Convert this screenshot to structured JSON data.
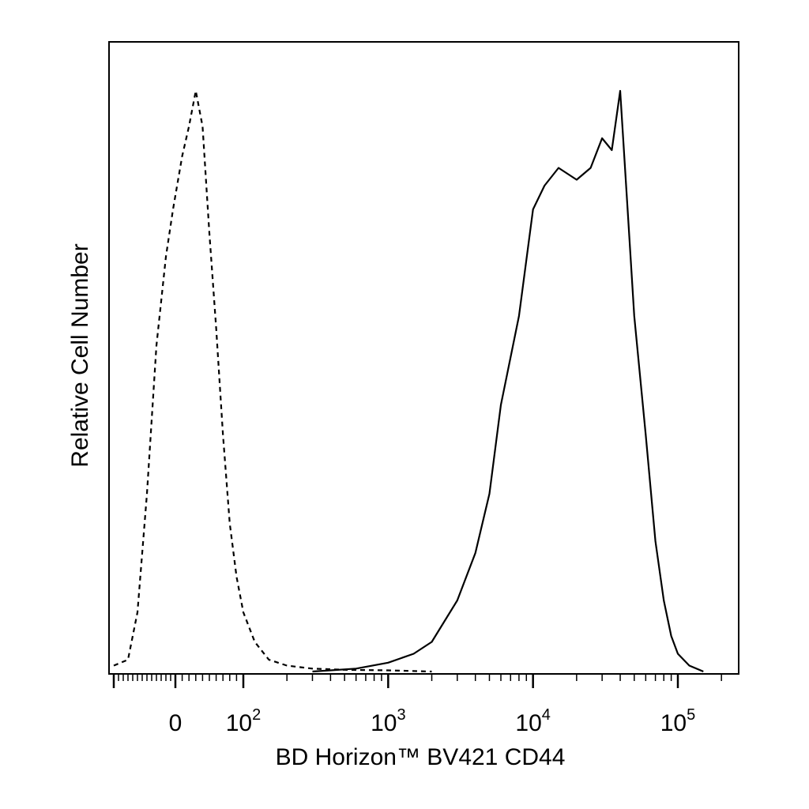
{
  "chart_data": {
    "type": "line",
    "title": "",
    "xlabel": "BD Horizon™ BV421 CD44",
    "ylabel": "Relative Cell Number",
    "x_scale": "biexponential",
    "xlim": [
      -130,
      250000
    ],
    "ylim": [
      0,
      100
    ],
    "y_ticks_labeled": false,
    "grid": false,
    "legend": "none",
    "x_tick_labels": [
      {
        "value": 0,
        "base": "0",
        "exp": ""
      },
      {
        "value": 100,
        "base": "10",
        "exp": "2"
      },
      {
        "value": 1000,
        "base": "10",
        "exp": "3"
      },
      {
        "value": 10000,
        "base": "10",
        "exp": "4"
      },
      {
        "value": 100000,
        "base": "10",
        "exp": "5"
      }
    ],
    "series": [
      {
        "style": "dashed",
        "color": "#000000",
        "x": [
          -130,
          -100,
          -80,
          -60,
          -40,
          -20,
          -5,
          10,
          20,
          30,
          40,
          50,
          60,
          70,
          80,
          90,
          100,
          120,
          150,
          200,
          300,
          500,
          1000,
          2000
        ],
        "y": [
          1,
          2,
          10,
          30,
          55,
          70,
          78,
          87,
          92,
          98,
          92,
          74,
          58,
          40,
          25,
          16,
          10,
          5,
          2,
          1,
          0.5,
          0.3,
          0.2,
          0
        ]
      },
      {
        "style": "solid",
        "color": "#000000",
        "x": [
          300,
          600,
          1000,
          1500,
          2000,
          3000,
          4000,
          5000,
          6000,
          8000,
          10000,
          12000,
          15000,
          20000,
          25000,
          30000,
          35000,
          40000,
          45000,
          50000,
          60000,
          70000,
          80000,
          90000,
          100000,
          120000,
          150000
        ],
        "y": [
          0,
          0.5,
          1.5,
          3,
          5,
          12,
          20,
          30,
          45,
          60,
          78,
          82,
          85,
          83,
          85,
          90,
          88,
          98,
          78,
          60,
          40,
          22,
          12,
          6,
          3,
          1,
          0
        ]
      }
    ]
  }
}
